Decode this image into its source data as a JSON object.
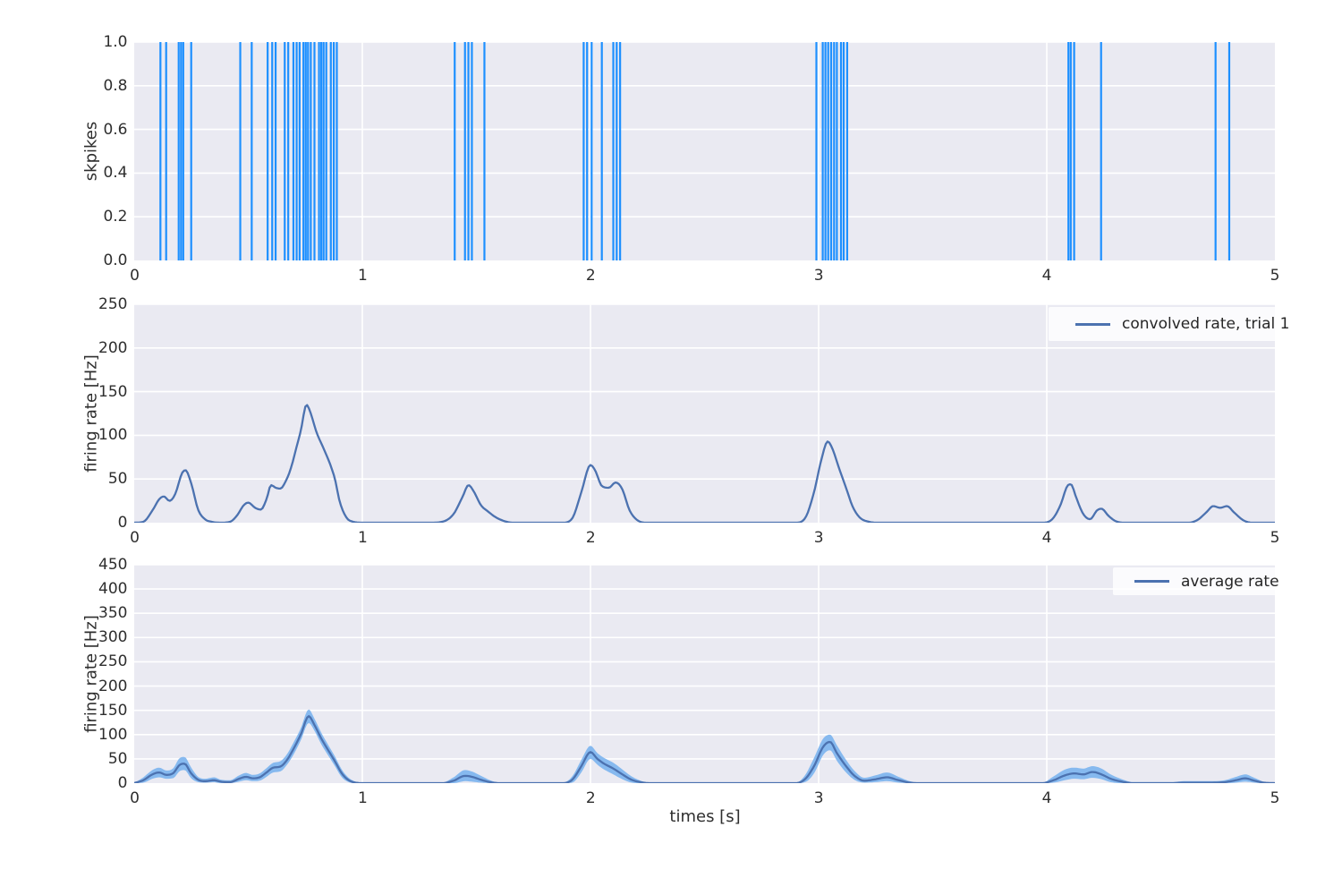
{
  "figure": {
    "background": "#ffffff",
    "axes_background": "#eaeaf2",
    "grid_color": "#ffffff"
  },
  "chart_data": [
    {
      "type": "event-raster",
      "ylabel": "skpikes",
      "xlim": [
        0,
        5
      ],
      "ylim": [
        0.0,
        1.0
      ],
      "xticks": [
        "0",
        "1",
        "2",
        "3",
        "4",
        "5"
      ],
      "yticks": [
        "0.0",
        "0.2",
        "0.4",
        "0.6",
        "0.8",
        "1.0"
      ],
      "spike_color": "#1e90ff",
      "spike_times": [
        0.115,
        0.14,
        0.195,
        0.205,
        0.215,
        0.25,
        0.465,
        0.515,
        0.585,
        0.605,
        0.62,
        0.66,
        0.675,
        0.698,
        0.712,
        0.725,
        0.742,
        0.752,
        0.762,
        0.774,
        0.79,
        0.81,
        0.82,
        0.83,
        0.842,
        0.862,
        0.875,
        0.888,
        1.405,
        1.45,
        1.465,
        1.48,
        1.535,
        1.97,
        1.985,
        2.005,
        2.05,
        2.1,
        2.115,
        2.13,
        2.99,
        3.018,
        3.03,
        3.042,
        3.055,
        3.068,
        3.08,
        3.098,
        3.11,
        3.125,
        4.095,
        4.105,
        4.12,
        4.238,
        4.74,
        4.8
      ]
    },
    {
      "type": "line",
      "legend": "convolved rate, trial 1",
      "ylabel": "firing rate [Hz]",
      "xlim": [
        0,
        5
      ],
      "ylim": [
        0,
        250
      ],
      "xticks": [
        "0",
        "1",
        "2",
        "3",
        "4",
        "5"
      ],
      "yticks": [
        "0",
        "50",
        "100",
        "150",
        "200",
        "250"
      ],
      "line_color": "#4c72b0",
      "x": [
        0,
        0.04,
        0.08,
        0.11,
        0.13,
        0.155,
        0.18,
        0.21,
        0.225,
        0.25,
        0.28,
        0.31,
        0.34,
        0.38,
        0.42,
        0.45,
        0.48,
        0.5,
        0.53,
        0.555,
        0.58,
        0.6,
        0.62,
        0.64,
        0.665,
        0.69,
        0.71,
        0.73,
        0.755,
        0.77,
        0.8,
        0.83,
        0.86,
        0.88,
        0.9,
        0.93,
        0.96,
        1,
        1.3,
        1.35,
        1.4,
        1.44,
        1.465,
        1.49,
        1.52,
        1.55,
        1.58,
        1.62,
        1.66,
        1.88,
        1.92,
        1.96,
        2,
        2.02,
        2.05,
        2.08,
        2.11,
        2.14,
        2.17,
        2.2,
        2.24,
        2.9,
        2.94,
        2.98,
        3.01,
        3.04,
        3.06,
        3.09,
        3.12,
        3.15,
        3.18,
        3.22,
        3.26,
        3.98,
        4.02,
        4.06,
        4.09,
        4.105,
        4.13,
        4.16,
        4.19,
        4.22,
        4.24,
        4.27,
        4.3,
        4.34,
        4.62,
        4.66,
        4.7,
        4.73,
        4.76,
        4.79,
        4.82,
        4.86,
        4.9,
        5
      ],
      "y": [
        0,
        1,
        14,
        27,
        30,
        25,
        33,
        57,
        60,
        45,
        15,
        4,
        1,
        0,
        1,
        8,
        20,
        23,
        17,
        15,
        27,
        43,
        40,
        39,
        48,
        65,
        85,
        105,
        135,
        128,
        103,
        85,
        66,
        50,
        25,
        6,
        1,
        0,
        0,
        1,
        10,
        30,
        43,
        35,
        20,
        13,
        7,
        2,
        0,
        0,
        5,
        35,
        66,
        60,
        42,
        40,
        46,
        38,
        15,
        4,
        0,
        0,
        5,
        35,
        70,
        93,
        85,
        62,
        40,
        18,
        6,
        1,
        0,
        0,
        3,
        20,
        42,
        44,
        28,
        10,
        4,
        14,
        16,
        8,
        2,
        0,
        0,
        3,
        12,
        19,
        17,
        19,
        12,
        3,
        0,
        0
      ]
    },
    {
      "type": "area",
      "legend": "average rate",
      "ylabel": "firing rate [Hz]",
      "xlabel": "times [s]",
      "xlim": [
        0,
        5
      ],
      "ylim": [
        0,
        450
      ],
      "xticks": [
        "0",
        "1",
        "2",
        "3",
        "4",
        "5"
      ],
      "yticks": [
        "0",
        "50",
        "100",
        "150",
        "200",
        "250",
        "300",
        "350",
        "400",
        "450"
      ],
      "line_color": "#4c72b0",
      "band_color": "#86b9ef",
      "x": [
        0,
        0.04,
        0.08,
        0.11,
        0.14,
        0.17,
        0.2,
        0.22,
        0.25,
        0.28,
        0.31,
        0.35,
        0.38,
        0.42,
        0.46,
        0.49,
        0.52,
        0.55,
        0.58,
        0.61,
        0.64,
        0.67,
        0.7,
        0.73,
        0.765,
        0.79,
        0.82,
        0.85,
        0.88,
        0.91,
        0.94,
        0.97,
        1,
        1.35,
        1.4,
        1.45,
        1.48,
        1.52,
        1.56,
        1.6,
        1.88,
        1.92,
        1.96,
        2,
        2.03,
        2.06,
        2.1,
        2.14,
        2.18,
        2.22,
        2.26,
        2.9,
        2.94,
        2.98,
        3.02,
        3.05,
        3.08,
        3.12,
        3.16,
        3.2,
        3.25,
        3.3,
        3.35,
        3.4,
        3.45,
        3.98,
        4.03,
        4.08,
        4.12,
        4.16,
        4.2,
        4.24,
        4.28,
        4.33,
        4.38,
        4.55,
        4.6,
        4.66,
        4.72,
        4.78,
        4.83,
        4.87,
        4.91,
        4.95,
        5
      ],
      "mean": [
        0,
        6,
        18,
        22,
        17,
        20,
        38,
        40,
        20,
        7,
        4,
        6,
        3,
        2,
        9,
        13,
        10,
        12,
        22,
        32,
        34,
        48,
        72,
        100,
        138,
        120,
        92,
        68,
        45,
        20,
        6,
        1,
        0,
        0,
        5,
        15,
        13,
        7,
        2,
        0,
        0,
        7,
        35,
        64,
        50,
        40,
        30,
        18,
        7,
        2,
        0,
        0,
        8,
        35,
        75,
        85,
        62,
        35,
        14,
        5,
        8,
        12,
        6,
        1,
        0,
        0,
        6,
        16,
        20,
        18,
        23,
        18,
        9,
        3,
        0,
        0,
        1,
        1,
        1,
        2,
        6,
        10,
        5,
        1,
        0
      ],
      "lower": [
        0,
        1,
        9,
        12,
        9,
        10,
        25,
        27,
        10,
        2,
        1,
        2,
        0,
        0,
        3,
        6,
        4,
        5,
        13,
        22,
        24,
        38,
        60,
        88,
        124,
        108,
        80,
        57,
        35,
        12,
        2,
        0,
        0,
        0,
        0,
        4,
        3,
        1,
        0,
        0,
        0,
        1,
        22,
        50,
        38,
        28,
        18,
        8,
        1,
        0,
        0,
        0,
        2,
        20,
        58,
        68,
        46,
        22,
        6,
        1,
        2,
        4,
        1,
        0,
        0,
        0,
        1,
        6,
        9,
        8,
        11,
        8,
        2,
        0,
        0,
        0,
        0,
        0,
        0,
        0,
        1,
        3,
        1,
        0,
        0
      ],
      "upper": [
        0,
        12,
        27,
        32,
        26,
        30,
        52,
        54,
        32,
        13,
        9,
        12,
        7,
        6,
        16,
        21,
        17,
        20,
        31,
        42,
        45,
        60,
        85,
        113,
        152,
        133,
        104,
        79,
        55,
        28,
        11,
        3,
        0,
        1,
        12,
        27,
        24,
        15,
        6,
        1,
        1,
        14,
        48,
        77,
        62,
        52,
        42,
        28,
        14,
        5,
        0,
        1,
        16,
        52,
        92,
        100,
        78,
        48,
        24,
        11,
        16,
        22,
        13,
        4,
        0,
        1,
        14,
        28,
        32,
        30,
        35,
        30,
        18,
        8,
        2,
        2,
        4,
        4,
        4,
        6,
        13,
        18,
        11,
        3,
        0
      ]
    }
  ]
}
